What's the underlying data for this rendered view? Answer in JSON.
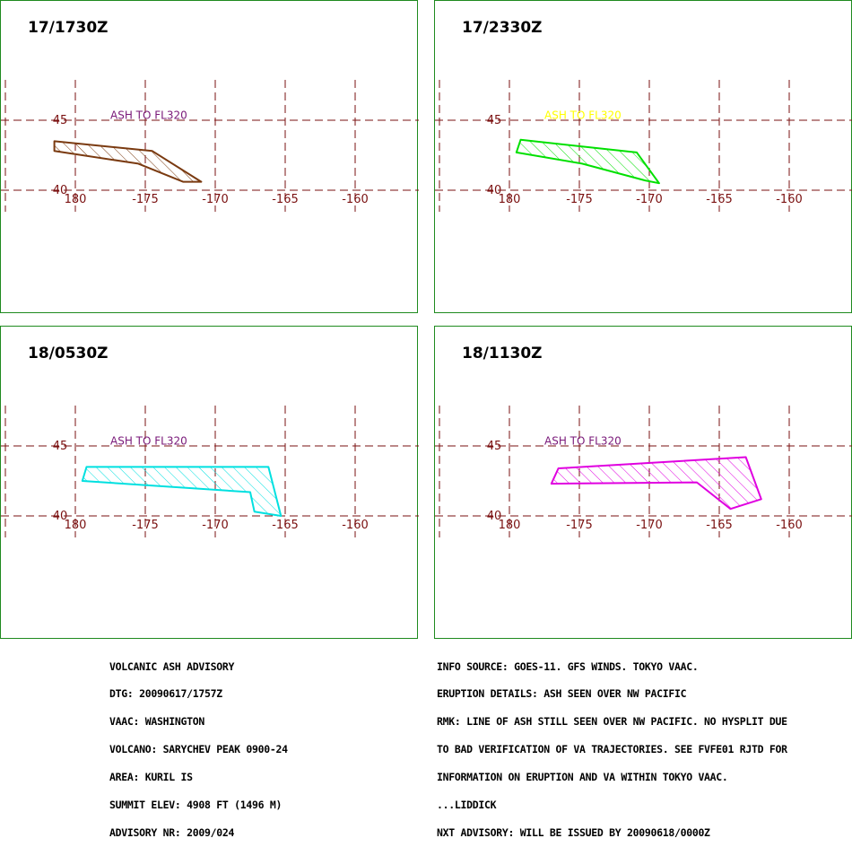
{
  "panels": [
    {
      "title": "17/1730Z",
      "ash_label": "ASH TO FL320",
      "label_color": "#7a1a7a",
      "polygon_color": "#7a3a10",
      "polygon": [
        [
          -181.5,
          43.5
        ],
        [
          -174.5,
          42.8
        ],
        [
          -171.0,
          40.6
        ],
        [
          -172.3,
          40.6
        ],
        [
          -175.5,
          41.9
        ],
        [
          -181.5,
          42.8
        ]
      ]
    },
    {
      "title": "17/2330Z",
      "ash_label": "ASH TO FL320",
      "label_color": "#ffff00",
      "polygon_color": "#00e000",
      "polygon": [
        [
          -179.2,
          43.6
        ],
        [
          -170.9,
          42.7
        ],
        [
          -169.3,
          40.5
        ],
        [
          -170.3,
          40.7
        ],
        [
          -174.8,
          41.9
        ],
        [
          -179.5,
          42.7
        ]
      ]
    },
    {
      "title": "18/0530Z",
      "ash_label": "ASH TO FL320",
      "label_color": "#7a1a7a",
      "polygon_color": "#00e0e0",
      "polygon": [
        [
          -179.2,
          43.5
        ],
        [
          -166.2,
          43.5
        ],
        [
          -165.3,
          40.0
        ],
        [
          -167.2,
          40.3
        ],
        [
          -167.5,
          41.7
        ],
        [
          -179.5,
          42.5
        ]
      ]
    },
    {
      "title": "18/1130Z",
      "ash_label": "ASH TO FL320",
      "label_color": "#7a1a7a",
      "polygon_color": "#e000e0",
      "polygon": [
        [
          -176.5,
          43.4
        ],
        [
          -163.1,
          44.2
        ],
        [
          -162.0,
          41.2
        ],
        [
          -164.2,
          40.5
        ],
        [
          -166.6,
          42.4
        ],
        [
          -177.0,
          42.3
        ]
      ]
    }
  ],
  "axes": {
    "lon_ticks": [
      180,
      -175,
      -170,
      -165,
      -160
    ],
    "lon_tick_labels": [
      "180",
      "-175",
      "-170",
      "-165",
      "-160"
    ],
    "lat_ticks": [
      45,
      40
    ],
    "lat_tick_labels": [
      "45",
      "40"
    ],
    "lon_range": [
      -185,
      -154
    ],
    "lat_range": [
      38,
      49
    ]
  },
  "footer_left": [
    "VOLCANIC ASH ADVISORY",
    "DTG: 20090617/1757Z",
    "VAAC: WASHINGTON",
    "VOLCANO: SARYCHEV PEAK 0900-24",
    "AREA: KURIL IS",
    "SUMMIT ELEV: 4908 FT (1496 M)",
    "ADVISORY NR: 2009/024"
  ],
  "footer_right": [
    "INFO SOURCE: GOES-11. GFS WINDS. TOKYO VAAC.",
    "ERUPTION DETAILS: ASH SEEN OVER NW PACIFIC",
    "RMK: LINE OF ASH STILL SEEN OVER NW PACIFIC. NO HYSPLIT DUE",
    "TO BAD VERIFICATION OF VA TRAJECTORIES. SEE FVFE01 RJTD FOR",
    "INFORMATION ON ERUPTION AND VA WITHIN TOKYO VAAC.",
    "...LIDDICK",
    "NXT ADVISORY: WILL BE ISSUED BY 20090618/0000Z"
  ],
  "colors": {
    "frame": "#1f8a1f",
    "grid": "#7a1010",
    "background": "#ffffff"
  }
}
